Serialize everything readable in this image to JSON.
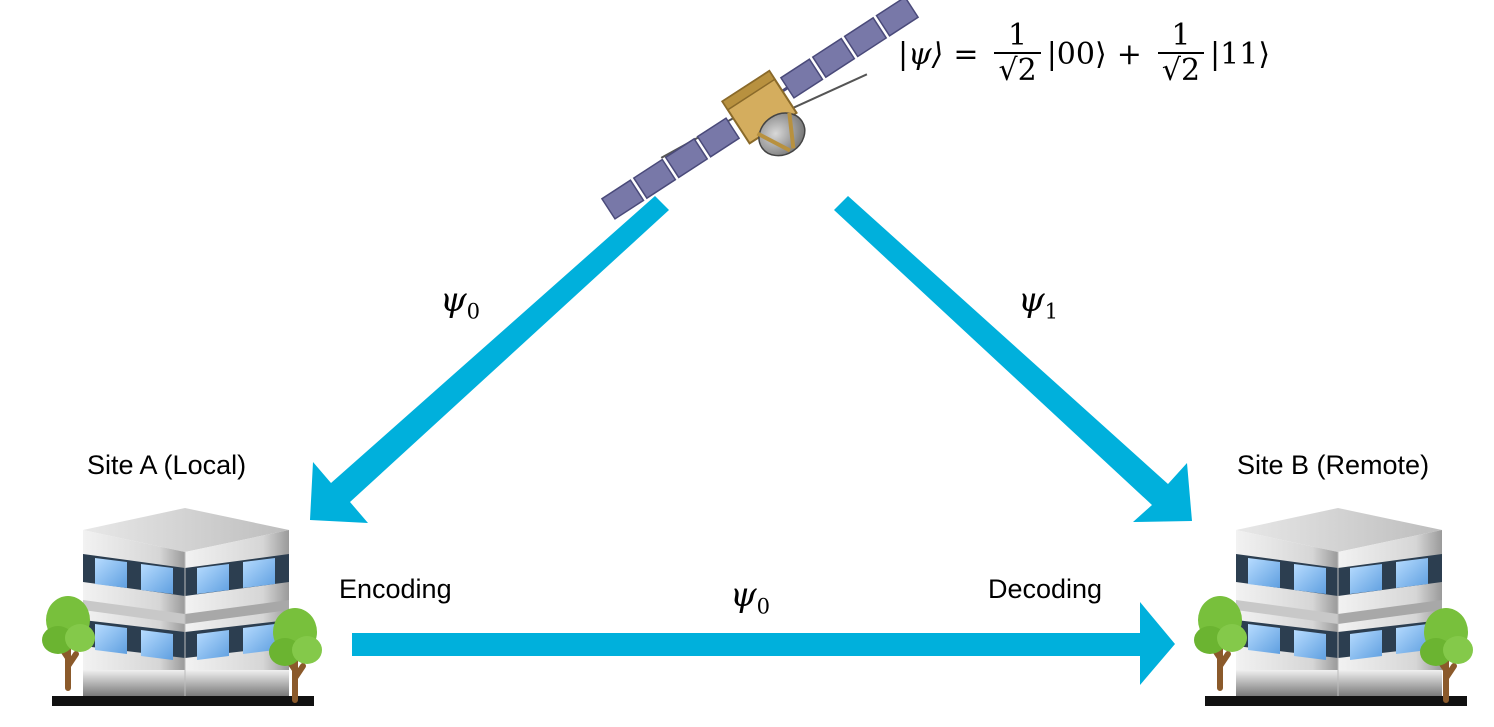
{
  "formula": {
    "lhs": "|ψ⟩",
    "equals": "=",
    "coef_num": "1",
    "coef_den": "√2",
    "ket_a": "|00⟩",
    "plus": "+",
    "ket_b": "|11⟩"
  },
  "labels": {
    "site_a": "Site A (Local)",
    "site_b": "Site B (Remote)",
    "encoding": "Encoding",
    "decoding": "Decoding"
  },
  "channels": {
    "left": {
      "symbol": "ψ",
      "sub": "0"
    },
    "right": {
      "symbol": "ψ",
      "sub": "1"
    },
    "bottom": {
      "symbol": "ψ",
      "sub": "0"
    }
  },
  "colors": {
    "arrow": "#00b0dc",
    "satellite_body": "#d4ad5e",
    "solar_panel": "#7878a8",
    "building_wall": "#d9d9d9",
    "window": "#8fc4f0",
    "tree": "#78c03c",
    "ground": "#111111"
  },
  "icons": {
    "satellite": "satellite-icon",
    "building": "office-building-icon",
    "tree": "tree-icon"
  }
}
